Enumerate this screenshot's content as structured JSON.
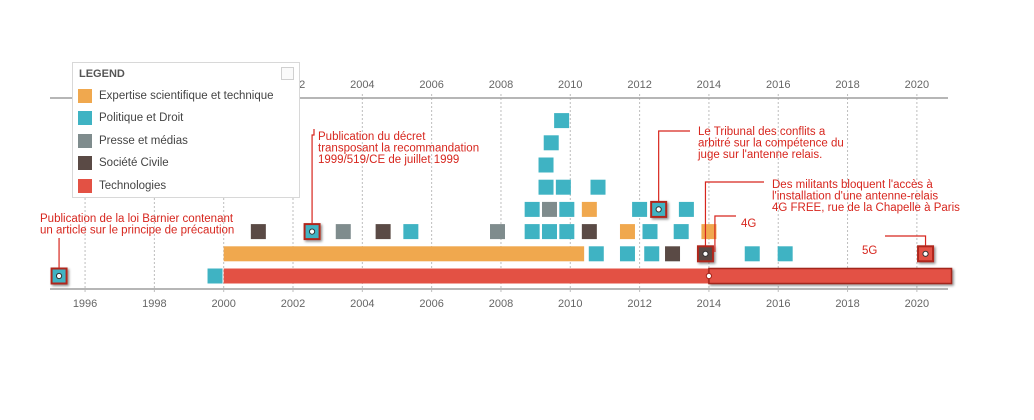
{
  "chart_data": {
    "type": "timeline",
    "x_axis": {
      "range": [
        1994.7,
        2021.1
      ],
      "ticks": [
        1996,
        1998,
        2000,
        2002,
        2004,
        2006,
        2008,
        2010,
        2012,
        2014,
        2016,
        2018,
        2020
      ],
      "tick_labels": [
        "1996",
        "1998",
        "2000",
        "2002",
        "2004",
        "2006",
        "2008",
        "2010",
        "2012",
        "2014",
        "2016",
        "2018",
        "2020"
      ],
      "top_axis": true,
      "bottom_axis": true,
      "grid": "dotted-vertical"
    },
    "legend": {
      "title": "LEGEND",
      "placement": "top-left",
      "items": [
        {
          "label": "Expertise scientifique et technique",
          "key": "expertise",
          "color": "#F0A84E"
        },
        {
          "label": "Politique et Droit",
          "key": "politique",
          "color": "#3FB3C3"
        },
        {
          "label": "Presse et médias",
          "key": "presse",
          "color": "#7F8C8D"
        },
        {
          "label": "Société Civile",
          "key": "societe",
          "color": "#5A4A45"
        },
        {
          "label": "Technologies",
          "key": "technologies",
          "color": "#E35144"
        }
      ]
    },
    "bars": [
      {
        "category": "technologies",
        "start": 2000.0,
        "end": 2021.0,
        "lane": 0
      },
      {
        "category": "expertise",
        "start": 2000.0,
        "end": 2010.4,
        "lane": 1
      }
    ],
    "events": [
      {
        "category": "politique",
        "year": 1995.25,
        "lane": 0,
        "highlight": true
      },
      {
        "category": "politique",
        "year": 1999.75,
        "lane": 0
      },
      {
        "category": "politique",
        "year": 2010.75,
        "lane": 1
      },
      {
        "category": "politique",
        "year": 2011.65,
        "lane": 1
      },
      {
        "category": "politique",
        "year": 2012.35,
        "lane": 1
      },
      {
        "category": "societe",
        "year": 2012.95,
        "lane": 1
      },
      {
        "category": "societe",
        "year": 2013.9,
        "lane": 1,
        "highlight": true
      },
      {
        "category": "politique",
        "year": 2015.25,
        "lane": 1
      },
      {
        "category": "politique",
        "year": 2016.2,
        "lane": 1
      },
      {
        "category": "technologies",
        "year": 2020.25,
        "lane": 1,
        "highlight": true
      },
      {
        "category": "societe",
        "year": 2001.0,
        "lane": 2
      },
      {
        "category": "politique",
        "year": 2002.55,
        "lane": 2,
        "highlight": true
      },
      {
        "category": "presse",
        "year": 2003.45,
        "lane": 2
      },
      {
        "category": "societe",
        "year": 2004.6,
        "lane": 2
      },
      {
        "category": "politique",
        "year": 2005.4,
        "lane": 2
      },
      {
        "category": "presse",
        "year": 2007.9,
        "lane": 2
      },
      {
        "category": "politique",
        "year": 2008.9,
        "lane": 2
      },
      {
        "category": "politique",
        "year": 2009.4,
        "lane": 2
      },
      {
        "category": "politique",
        "year": 2009.9,
        "lane": 2
      },
      {
        "category": "societe",
        "year": 2010.55,
        "lane": 2
      },
      {
        "category": "expertise",
        "year": 2011.65,
        "lane": 2
      },
      {
        "category": "politique",
        "year": 2012.3,
        "lane": 2
      },
      {
        "category": "politique",
        "year": 2013.2,
        "lane": 2
      },
      {
        "category": "expertise",
        "year": 2014.0,
        "lane": 2
      },
      {
        "category": "politique",
        "year": 2008.9,
        "lane": 3
      },
      {
        "category": "presse",
        "year": 2009.4,
        "lane": 3
      },
      {
        "category": "politique",
        "year": 2009.9,
        "lane": 3
      },
      {
        "category": "expertise",
        "year": 2010.55,
        "lane": 3
      },
      {
        "category": "politique",
        "year": 2012.0,
        "lane": 3
      },
      {
        "category": "politique",
        "year": 2012.55,
        "lane": 3,
        "highlight": true
      },
      {
        "category": "politique",
        "year": 2013.35,
        "lane": 3
      },
      {
        "category": "politique",
        "year": 2009.3,
        "lane": 4
      },
      {
        "category": "politique",
        "year": 2009.8,
        "lane": 4
      },
      {
        "category": "politique",
        "year": 2010.8,
        "lane": 4
      },
      {
        "category": "politique",
        "year": 2009.3,
        "lane": 5
      },
      {
        "category": "politique",
        "year": 2009.45,
        "lane": 6
      },
      {
        "category": "politique",
        "year": 2009.75,
        "lane": 7
      }
    ],
    "annotations": [
      {
        "text": "Publication de la loi Barnier contenant\nun article sur le principe de précaution",
        "anchor_year": 1995.25,
        "anchor_lane": 0
      },
      {
        "text": "Publication du décret\ntransposant la recommandation\n1999/519/CE de juillet 1999",
        "anchor_year": 2002.55,
        "anchor_lane": 2
      },
      {
        "text": "Le Tribunal des conflits a\narbitré sur la compétence du\njuge sur l'antenne relais.",
        "anchor_year": 2012.55,
        "anchor_lane": 3
      },
      {
        "text": "Des militants bloquent l'accès à\nl'installation d'une antenne-relais\n4G FREE, rue de la Chapelle à Paris",
        "anchor_year": 2013.9,
        "anchor_lane": 1
      },
      {
        "text": "4G",
        "anchor_year": 2014.0,
        "anchor_lane": 0
      },
      {
        "text": "5G",
        "anchor_year": 2020.25,
        "anchor_lane": 1
      }
    ]
  }
}
